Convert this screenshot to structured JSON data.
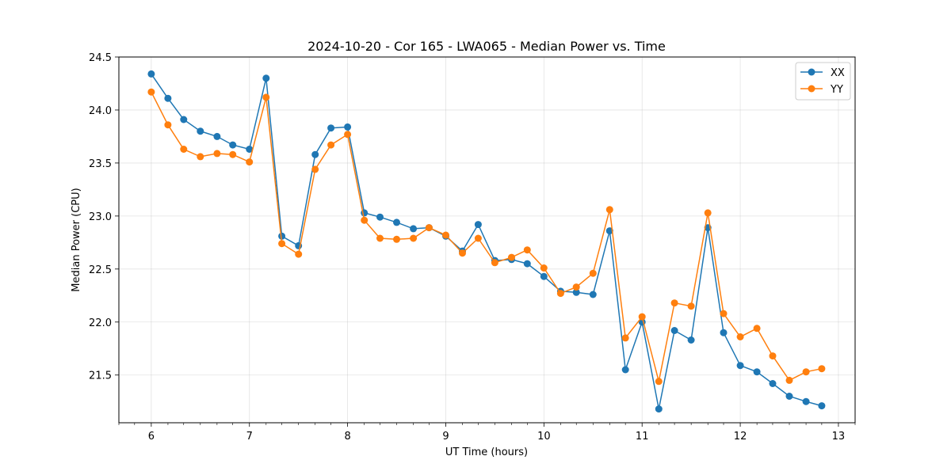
{
  "chart_data": {
    "type": "line",
    "title": "2024-10-20 - Cor 165 - LWA065 - Median Power vs. Time",
    "xlabel": "UT Time (hours)",
    "ylabel": "Median Power (CPU)",
    "xlim": [
      5.67,
      13.17
    ],
    "ylim": [
      21.05,
      24.5
    ],
    "xticks": [
      6,
      7,
      8,
      9,
      10,
      11,
      12,
      13
    ],
    "xtick_labels": [
      "6",
      "7",
      "8",
      "9",
      "10",
      "11",
      "12",
      "13"
    ],
    "minor_xticks": [
      5.67,
      5.83,
      6.17,
      6.33,
      6.5,
      6.67,
      6.83,
      7.17,
      7.33,
      7.5,
      7.67,
      7.83,
      8.17,
      8.33,
      8.5,
      8.67,
      8.83,
      9.17,
      9.33,
      9.5,
      9.67,
      9.83,
      10.17,
      10.33,
      10.5,
      10.67,
      10.83,
      11.17,
      11.33,
      11.5,
      11.67,
      11.83,
      12.17,
      12.33,
      12.5,
      12.67,
      12.83,
      13.17
    ],
    "yticks": [
      21.5,
      22.0,
      22.5,
      23.0,
      23.5,
      24.0,
      24.5
    ],
    "ytick_labels": [
      "21.5",
      "22.0",
      "22.5",
      "23.0",
      "23.5",
      "24.0",
      "24.5"
    ],
    "grid": true,
    "legend_position": "top-right",
    "x": [
      6.0,
      6.17,
      6.33,
      6.5,
      6.67,
      6.83,
      7.0,
      7.17,
      7.33,
      7.5,
      7.67,
      7.83,
      8.0,
      8.17,
      8.33,
      8.5,
      8.67,
      8.83,
      9.0,
      9.17,
      9.33,
      9.5,
      9.67,
      9.83,
      10.0,
      10.17,
      10.33,
      10.5,
      10.67,
      10.83,
      11.0,
      11.17,
      11.33,
      11.5,
      11.67,
      11.83,
      12.0,
      12.17,
      12.33,
      12.5,
      12.67,
      12.83
    ],
    "series": [
      {
        "name": "XX",
        "color": "#1f77b4",
        "values": [
          24.34,
          24.11,
          23.91,
          23.8,
          23.75,
          23.67,
          23.63,
          24.3,
          22.81,
          22.72,
          23.58,
          23.83,
          23.84,
          23.03,
          22.99,
          22.94,
          22.88,
          22.89,
          22.81,
          22.67,
          22.92,
          22.58,
          22.59,
          22.55,
          22.43,
          22.29,
          22.28,
          22.26,
          22.86,
          21.55,
          22.0,
          21.18,
          21.92,
          21.83,
          22.89,
          21.9,
          21.59,
          21.53,
          21.42,
          21.3,
          21.25,
          21.21
        ]
      },
      {
        "name": "YY",
        "color": "#ff7f0e",
        "values": [
          24.17,
          23.86,
          23.63,
          23.56,
          23.59,
          23.58,
          23.51,
          24.12,
          22.74,
          22.64,
          23.44,
          23.67,
          23.77,
          22.96,
          22.79,
          22.78,
          22.79,
          22.89,
          22.82,
          22.65,
          22.79,
          22.56,
          22.61,
          22.68,
          22.51,
          22.27,
          22.33,
          22.46,
          23.06,
          21.85,
          22.05,
          21.44,
          22.18,
          22.15,
          23.03,
          22.08,
          21.86,
          21.94,
          21.68,
          21.45,
          21.53,
          21.56
        ]
      }
    ]
  }
}
